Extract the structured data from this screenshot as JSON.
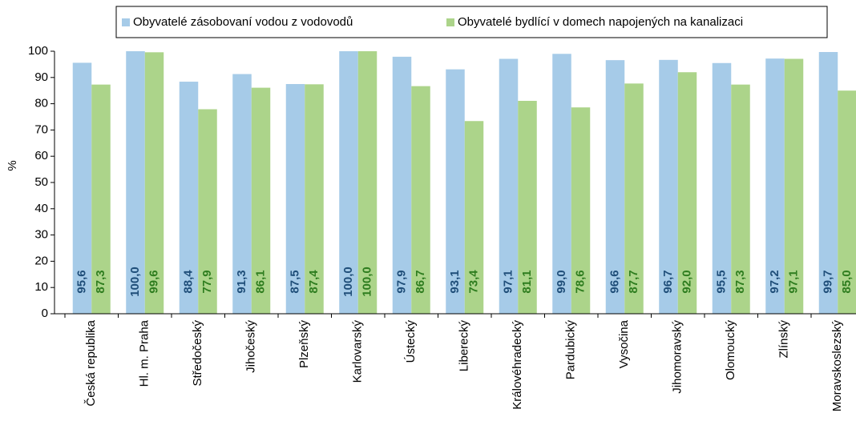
{
  "chart_data": {
    "type": "bar",
    "y_label": "%",
    "categories": [
      "Česká republika",
      "Hl. m. Praha",
      "Středočeský",
      "Jihočeský",
      "Plzeňský",
      "Karlovarský",
      "Ústecký",
      "Liberecký",
      "Královéhradecký",
      "Pardubický",
      "Vysočina",
      "Jihomoravský",
      "Olomoucký",
      "Zlínský",
      "Moravskoslezský"
    ],
    "series": [
      {
        "name": "Obyvatelé zásobovaní vodou z vodovodů",
        "color": "#a6cbe8",
        "label_color": "#1f4e79",
        "values": [
          95.6,
          100,
          88.4,
          91.3,
          87.5,
          100,
          97.9,
          93.1,
          97.1,
          99,
          96.6,
          96.7,
          95.5,
          97.2,
          99.7
        ],
        "value_labels": [
          "95,6",
          "100,0",
          "88,4",
          "91,3",
          "87,5",
          "100,0",
          "97,9",
          "93,1",
          "97,1",
          "99,0",
          "96,6",
          "96,7",
          "95,5",
          "97,2",
          "99,7"
        ]
      },
      {
        "name": "Obyvatelé bydlící v domech napojených na kanalizaci",
        "color": "#acd48a",
        "label_color": "#2e7d1f",
        "values": [
          87.3,
          99.6,
          77.9,
          86.1,
          87.4,
          100,
          86.7,
          73.4,
          81.1,
          78.6,
          87.7,
          92,
          87.3,
          97.1,
          85
        ],
        "value_labels": [
          "87,3",
          "99,6",
          "77,9",
          "86,1",
          "87,4",
          "100,0",
          "86,7",
          "73,4",
          "81,1",
          "78,6",
          "87,7",
          "92,0",
          "87,3",
          "97,1",
          "85,0"
        ]
      }
    ],
    "ylim": [
      0,
      100
    ],
    "yticks": [
      0,
      10,
      20,
      30,
      40,
      50,
      60,
      70,
      80,
      90,
      100
    ],
    "grid": false,
    "legend": "top"
  }
}
